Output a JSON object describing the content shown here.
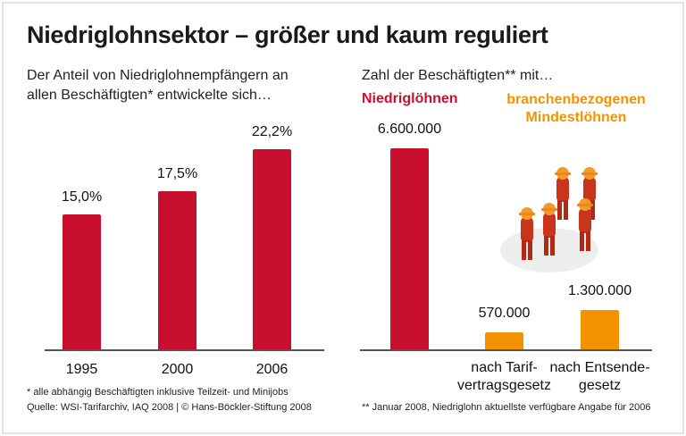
{
  "title": "Niedriglohnsektor – größer und kaum reguliert",
  "colors": {
    "red": "#c8102e",
    "orange": "#f39200"
  },
  "chart_data": [
    {
      "type": "bar",
      "subtitle": "Der Anteil von Niedriglohnempfängern an allen Beschäftigten* entwickelte sich…",
      "subtitle_lines": [
        "Der Anteil von Niedriglohnempfängern an",
        "allen Beschäftigten* entwickelte sich…"
      ],
      "categories": [
        "1995",
        "2000",
        "2006"
      ],
      "values": [
        15.0,
        17.5,
        22.2
      ],
      "data_labels": [
        "15,0%",
        "17,5%",
        "22,2%"
      ],
      "unit": "%",
      "ylim": [
        0,
        22.2
      ],
      "grid": false,
      "color": "#c8102e"
    },
    {
      "type": "bar",
      "subtitle": "Zahl der Beschäftigten** mit…",
      "groups": [
        {
          "label": "Niedriglöhnen",
          "color": "#c8102e"
        },
        {
          "label": "branchenbezogenen Mindestlöhnen",
          "label_lines": [
            "branchenbezogenen",
            "Mindestlöhnen"
          ],
          "color": "#f39200"
        }
      ],
      "categories": [
        "",
        "nach Tarif-vertragsgesetz",
        "nach Entsende-gesetz"
      ],
      "category_lines": [
        [],
        [
          "nach Tarif-",
          "vertragsgesetz"
        ],
        [
          "nach Entsende-",
          "gesetz"
        ]
      ],
      "values": [
        6600000,
        570000,
        1300000
      ],
      "data_labels": [
        "6.600.000",
        "570.000",
        "1.300.000"
      ],
      "bar_colors": [
        "#c8102e",
        "#f39200",
        "#f39200"
      ],
      "ylim": [
        0,
        6600000
      ],
      "grid": false
    }
  ],
  "footnotes": {
    "left_1": "* alle abhängig Beschäftigten inklusive Teilzeit- und Minijobs",
    "left_2": "Quelle: WSI-Tarifarchiv, IAQ 2008 | © Hans-Böckler-Stiftung 2008",
    "right": "** Januar 2008, Niedriglohn aktuellste verfügbare Angabe für 2006"
  },
  "illustration": "construction-workers-figures-icon"
}
